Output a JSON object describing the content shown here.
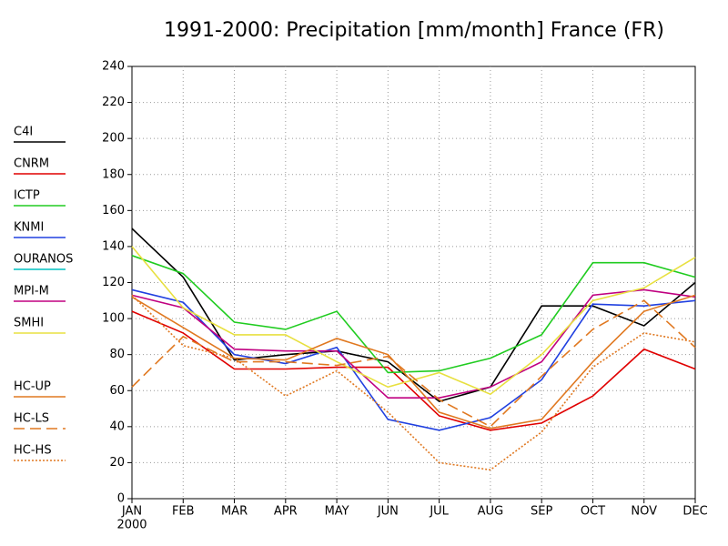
{
  "chart_data": {
    "type": "line",
    "title": "1991-2000: Precipitation [mm/month] France (FR)",
    "categories": [
      "JAN",
      "FEB",
      "MAR",
      "APR",
      "MAY",
      "JUN",
      "JUL",
      "AUG",
      "SEP",
      "OCT",
      "NOV",
      "DEC"
    ],
    "year_label": "2000",
    "ylim": [
      0,
      240
    ],
    "yticks": [
      0,
      20,
      40,
      60,
      80,
      100,
      120,
      140,
      160,
      180,
      200,
      220,
      240
    ],
    "grid": true,
    "legend": "left",
    "series": [
      {
        "name": "C4I",
        "color": "#000000",
        "style": "solid",
        "values": [
          150,
          123,
          77,
          80,
          82,
          76,
          54,
          62,
          107,
          107,
          96,
          120
        ]
      },
      {
        "name": "CNRM",
        "color": "#e00000",
        "style": "solid",
        "values": [
          104,
          92,
          72,
          72,
          73,
          73,
          46,
          38,
          42,
          57,
          83,
          72
        ]
      },
      {
        "name": "ICTP",
        "color": "#20cc20",
        "style": "solid",
        "values": [
          135,
          125,
          98,
          94,
          104,
          70,
          71,
          78,
          91,
          131,
          131,
          123
        ]
      },
      {
        "name": "KNMI",
        "color": "#2040e0",
        "style": "solid",
        "values": [
          116,
          109,
          80,
          75,
          84,
          44,
          38,
          45,
          66,
          108,
          107,
          110
        ]
      },
      {
        "name": "OURANOS",
        "color": "#00c0c0",
        "style": "solid",
        "values": [
          null,
          null,
          null,
          null,
          null,
          null,
          null,
          null,
          null,
          null,
          null,
          null
        ]
      },
      {
        "name": "MPI-M",
        "color": "#c00080",
        "style": "solid",
        "values": [
          113,
          106,
          83,
          82,
          82,
          56,
          56,
          62,
          76,
          113,
          116,
          112
        ]
      },
      {
        "name": "SMHI",
        "color": "#e8e040",
        "style": "solid",
        "values": [
          140,
          106,
          91,
          91,
          76,
          62,
          70,
          58,
          80,
          110,
          117,
          134
        ]
      },
      {
        "name": "HC-UP",
        "color": "#e07820",
        "style": "solid",
        "values": [
          112,
          95,
          78,
          77,
          89,
          80,
          48,
          39,
          44,
          76,
          104,
          113
        ]
      },
      {
        "name": "HC-LS",
        "color": "#e07820",
        "style": "dashed",
        "values": [
          62,
          90,
          76,
          76,
          74,
          79,
          55,
          40,
          68,
          94,
          110,
          84
        ]
      },
      {
        "name": "HC-HS",
        "color": "#e07820",
        "style": "dotted",
        "values": [
          113,
          85,
          78,
          57,
          71,
          48,
          20,
          16,
          37,
          73,
          92,
          87
        ]
      }
    ]
  }
}
